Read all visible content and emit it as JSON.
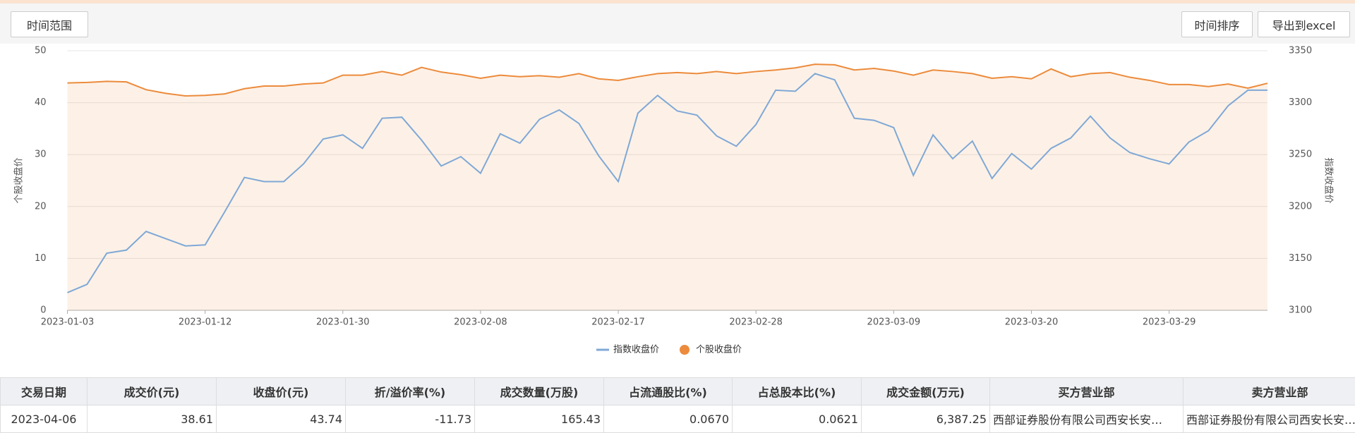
{
  "toolbar": {
    "time_range": "时间范围",
    "sort": "时间排序",
    "export": "导出到excel"
  },
  "chart_data": {
    "type": "line",
    "categories": [
      "2023-01-03",
      null,
      null,
      null,
      null,
      null,
      null,
      "2023-01-12",
      null,
      null,
      null,
      null,
      null,
      null,
      "2023-01-30",
      null,
      null,
      null,
      null,
      null,
      null,
      "2023-02-08",
      null,
      null,
      null,
      null,
      null,
      null,
      "2023-02-17",
      null,
      null,
      null,
      null,
      null,
      null,
      "2023-02-28",
      null,
      null,
      null,
      null,
      null,
      null,
      "2023-03-09",
      null,
      null,
      null,
      null,
      null,
      null,
      "2023-03-20",
      null,
      null,
      null,
      null,
      null,
      null,
      "2023-03-29",
      null,
      null,
      null,
      null,
      null
    ],
    "series": [
      {
        "name": "指数收盘价",
        "color": "#7fa8d6",
        "axis": "y2",
        "values": [
          3117,
          3125,
          3155,
          3158,
          3176,
          3169,
          3162,
          3163,
          3195,
          3228,
          3224,
          3224,
          3241,
          3265,
          3269,
          3256,
          3285,
          3286,
          3264,
          3239,
          3248,
          3232,
          3270,
          3261,
          3284,
          3293,
          3280,
          3249,
          3224,
          3290,
          3307,
          3292,
          3288,
          3268,
          3258,
          3279,
          3312,
          3311,
          3328,
          3322,
          3285,
          3283,
          3276,
          3230,
          3269,
          3246,
          3263,
          3227,
          3251,
          3236,
          3256,
          3266,
          3287,
          3266,
          3252,
          3246,
          3241,
          3262,
          3273,
          3297,
          3312,
          3312
        ]
      },
      {
        "name": "个股收盘价",
        "color": "#ec8b3c",
        "area": true,
        "values": [
          43.8,
          43.9,
          44.1,
          44.0,
          42.5,
          41.8,
          41.3,
          41.4,
          41.7,
          42.7,
          43.2,
          43.2,
          43.6,
          43.8,
          45.3,
          45.3,
          46.0,
          45.3,
          46.8,
          45.9,
          45.4,
          44.7,
          45.3,
          45.0,
          45.2,
          44.9,
          45.6,
          44.6,
          44.3,
          45.0,
          45.6,
          45.8,
          45.6,
          46.0,
          45.6,
          46.0,
          46.3,
          46.7,
          47.4,
          47.3,
          46.3,
          46.6,
          46.1,
          45.3,
          46.3,
          46.0,
          45.6,
          44.7,
          45.0,
          44.6,
          46.5,
          45.0,
          45.6,
          45.8,
          44.9,
          44.3,
          43.5,
          43.5,
          43.1,
          43.6,
          42.8,
          43.74
        ]
      }
    ],
    "ylabel": "个股收盘价",
    "y2label": "指数收盘价",
    "ylim": [
      0,
      50
    ],
    "yticks": [
      0,
      10,
      20,
      30,
      40,
      50
    ],
    "y2lim": [
      3100,
      3350
    ],
    "y2ticks": [
      3100,
      3150,
      3200,
      3250,
      3300,
      3350
    ],
    "grid": true
  },
  "table": {
    "headers": [
      "交易日期",
      "成交价(元)",
      "收盘价(元)",
      "折/溢价率(%)",
      "成交数量(万股)",
      "占流通股比(%)",
      "占总股本比(%)",
      "成交金额(万元)",
      "买方营业部",
      "卖方营业部"
    ],
    "rows": [
      [
        "2023-04-06",
        "38.61",
        "43.74",
        "-11.73",
        "165.43",
        "0.0670",
        "0.0621",
        "6,387.25",
        "西部证券股份有限公司西安长安…",
        "西部证券股份有限公司西安长安…"
      ]
    ]
  }
}
